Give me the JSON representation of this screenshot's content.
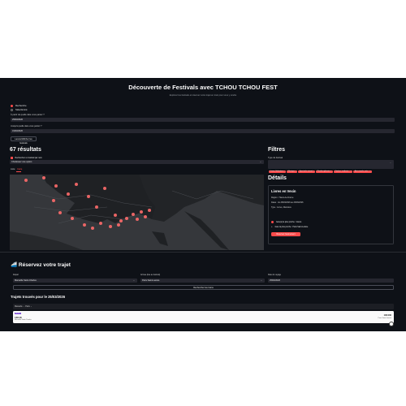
{
  "header": {
    "title": "Découverte de Festivals avec TCHOU TCHOU FEST",
    "subtitle": "Explorez les festivals et réservez votre trajet en train pour vous y rendre"
  },
  "filters_top": {
    "radio": [
      {
        "label": "Recherche",
        "selected": true
      },
      {
        "label": "Sélectionné",
        "selected": false
      }
    ],
    "date_from_label": "À partir de quelle date vous partez ?",
    "date_from_value": "25/03/2026",
    "date_to_label": "Jusqu'à quelle date vous partez ?",
    "date_to_value": "31/03/2026",
    "search_btn": "Lancer/Afficher les festivals"
  },
  "results": {
    "count_label": "67 résultats",
    "show_all_label": "Rechercher un festival par nom",
    "select_placeholder": "Choisissez une option",
    "view_tabs": [
      "Liste",
      "Carte"
    ],
    "active_tab": 1
  },
  "filters": {
    "title": "Filtres",
    "type_label": "Type de festival",
    "tags": [
      "Livres, littérature",
      "Musique",
      "Spectacle vivant",
      "Pluridisciplinaire",
      "Cinéma, audiovis...",
      "Arts visuels, arts..."
    ]
  },
  "details": {
    "title": "Détails",
    "name": "Livres en Vexin",
    "region": "Région : Hauts-de-France",
    "dates": "Dates : du 28/03/2026 au 29/03/2026",
    "type": "Type : Livres, littérature",
    "check1": "Gare(s) la plus proche : Gisors",
    "check2": "Gare la plus proche : Paris Saint-Lazare",
    "book_btn": "Réserver l'événement"
  },
  "trip": {
    "icon": "train-icon",
    "title": "Réservez votre trajet",
    "depart_label": "Départ",
    "depart_value": "Marseille Saint-Charles",
    "arrival_label": "Arrivée (liée au festival)",
    "arrival_value": "Paris Saint-Lazare",
    "date_label": "Date du voyage",
    "date_value": "25/03/2026",
    "search_btn": "Rechercher les trains",
    "found_title": "Trajets trouvés pour le 25/03/2026"
  },
  "train": {
    "route": "Marseille → Paris",
    "badge": "INOUI",
    "dep_time": "14h18",
    "price": "108.00€",
    "station": "Marseille Saint-Charles",
    "arr_station": "Paris Saint-Lazare"
  },
  "colors": {
    "accent": "#ff4b4b",
    "background": "#0e1117",
    "input": "#262730"
  }
}
